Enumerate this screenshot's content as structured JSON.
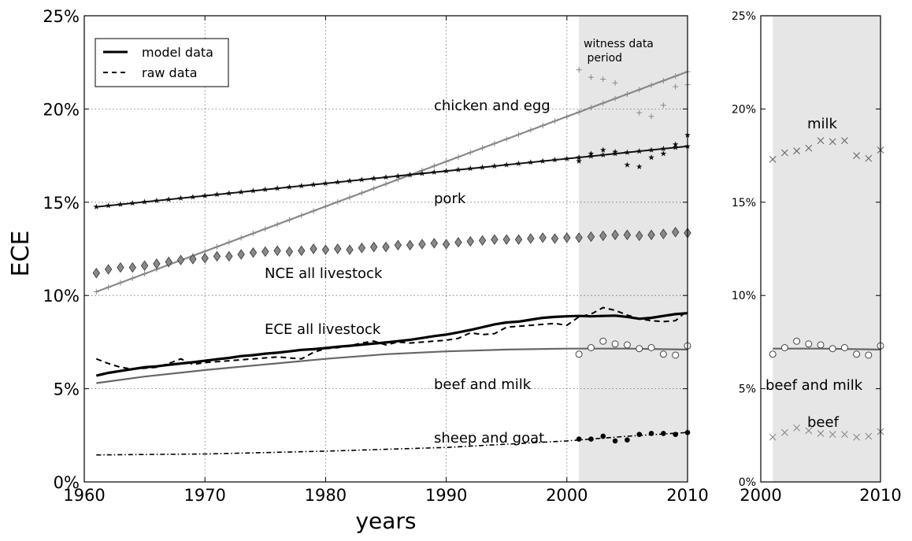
{
  "chart_data": [
    {
      "type": "line",
      "ylabel": "ECE",
      "xlabel": "years",
      "xlim": [
        1960,
        2010
      ],
      "ylim": [
        0,
        25
      ],
      "x_ticks": [
        "1960",
        "1970",
        "1980",
        "1990",
        "2000",
        "2010"
      ],
      "y_ticks": [
        "0%",
        "5%",
        "10%",
        "15%",
        "20%",
        "25%"
      ],
      "grid": true,
      "shaded_period": {
        "label": "witness data\n period",
        "x_range": [
          2001,
          2010
        ]
      },
      "legend": {
        "position": "top-left",
        "entries": [
          {
            "label": "model data",
            "style": "solid"
          },
          {
            "label": "raw data",
            "style": "dashed"
          }
        ]
      },
      "series": [
        {
          "name": "chicken and egg",
          "label": "chicken and egg",
          "color": "#888888",
          "model": {
            "x": [
              1961,
              2010
            ],
            "y": [
              10.2,
              22.0
            ]
          },
          "witness": {
            "x": [
              2001,
              2002,
              2003,
              2004,
              2006,
              2007,
              2008,
              2009,
              2010
            ],
            "y": [
              22.1,
              21.7,
              21.6,
              21.4,
              19.8,
              19.6,
              20.2,
              21.2,
              21.3
            ]
          }
        },
        {
          "name": "pork",
          "label": "pork",
          "color": "#111111",
          "model": {
            "x": [
              1961,
              2010
            ],
            "y": [
              14.75,
              18.0
            ]
          },
          "witness": {
            "x": [
              2001,
              2002,
              2003,
              2004,
              2005,
              2006,
              2007,
              2008,
              2009,
              2010
            ],
            "y": [
              17.2,
              17.6,
              17.8,
              17.7,
              17.0,
              16.9,
              17.4,
              17.6,
              18.1,
              18.6
            ]
          }
        },
        {
          "name": "NCE all livestock",
          "label": "NCE all livestock",
          "color": "#808080",
          "x": [
            1961,
            1962,
            1963,
            1964,
            1965,
            1966,
            1967,
            1968,
            1969,
            1970,
            1971,
            1972,
            1973,
            1974,
            1975,
            1976,
            1977,
            1978,
            1979,
            1980,
            1981,
            1982,
            1983,
            1984,
            1985,
            1986,
            1987,
            1988,
            1989,
            1990,
            1991,
            1992,
            1993,
            1994,
            1995,
            1996,
            1997,
            1998,
            1999,
            2000,
            2001,
            2002,
            2003,
            2004,
            2005,
            2006,
            2007,
            2008,
            2009,
            2010
          ],
          "y": [
            11.2,
            11.4,
            11.5,
            11.5,
            11.6,
            11.7,
            11.8,
            11.9,
            11.95,
            12.0,
            12.1,
            12.1,
            12.2,
            12.3,
            12.35,
            12.4,
            12.35,
            12.4,
            12.5,
            12.45,
            12.5,
            12.45,
            12.55,
            12.6,
            12.6,
            12.7,
            12.7,
            12.75,
            12.8,
            12.75,
            12.85,
            12.9,
            12.95,
            13.0,
            13.0,
            13.0,
            13.05,
            13.1,
            13.05,
            13.1,
            13.1,
            13.15,
            13.2,
            13.25,
            13.25,
            13.2,
            13.25,
            13.3,
            13.4,
            13.35
          ]
        },
        {
          "name": "ECE all livestock",
          "label": "ECE all livestock",
          "color": "#000000",
          "model": {
            "x": [
              1961,
              1962,
              1963,
              1964,
              1965,
              1966,
              1967,
              1968,
              1969,
              1970,
              1971,
              1972,
              1973,
              1974,
              1975,
              1976,
              1977,
              1978,
              1979,
              1980,
              1981,
              1982,
              1983,
              1984,
              1985,
              1986,
              1987,
              1988,
              1989,
              1990,
              1991,
              1992,
              1993,
              1994,
              1995,
              1996,
              1997,
              1998,
              1999,
              2000,
              2001,
              2002,
              2003,
              2004,
              2005,
              2006,
              2007,
              2008,
              2009,
              2010
            ],
            "y": [
              5.7,
              5.85,
              5.95,
              6.05,
              6.15,
              6.2,
              6.28,
              6.35,
              6.42,
              6.5,
              6.58,
              6.65,
              6.75,
              6.8,
              6.88,
              6.93,
              7.0,
              7.08,
              7.12,
              7.18,
              7.25,
              7.3,
              7.36,
              7.42,
              7.48,
              7.55,
              7.62,
              7.72,
              7.82,
              7.9,
              8.02,
              8.15,
              8.3,
              8.45,
              8.55,
              8.6,
              8.7,
              8.8,
              8.85,
              8.88,
              8.9,
              8.88,
              8.9,
              8.92,
              8.85,
              8.75,
              8.8,
              8.9,
              9.0,
              9.05
            ]
          },
          "raw": {
            "x": [
              1961,
              1962,
              1963,
              1964,
              1965,
              1966,
              1967,
              1968,
              1969,
              1970,
              1971,
              1972,
              1973,
              1974,
              1975,
              1976,
              1977,
              1978,
              1979,
              1980,
              1981,
              1982,
              1983,
              1984,
              1985,
              1986,
              1987,
              1988,
              1989,
              1990,
              1991,
              1992,
              1993,
              1994,
              1995,
              1996,
              1997,
              1998,
              1999,
              2000,
              2001,
              2002,
              2003,
              2004,
              2005,
              2006,
              2007,
              2008,
              2009,
              2010
            ],
            "y": [
              6.6,
              6.35,
              6.15,
              6.05,
              6.1,
              6.15,
              6.35,
              6.6,
              6.3,
              6.4,
              6.45,
              6.5,
              6.55,
              6.6,
              6.65,
              6.7,
              6.65,
              6.6,
              6.95,
              7.15,
              7.2,
              7.3,
              7.45,
              7.55,
              7.35,
              7.5,
              7.45,
              7.5,
              7.55,
              7.6,
              7.7,
              8.0,
              7.9,
              7.95,
              8.3,
              8.35,
              8.4,
              8.45,
              8.5,
              8.4,
              8.85,
              9.0,
              9.35,
              9.2,
              8.95,
              8.75,
              8.65,
              8.6,
              8.65,
              9.2
            ]
          }
        },
        {
          "name": "beef and milk",
          "label": "beef and milk",
          "color": "#666666",
          "model": {
            "x": [
              1961,
              1965,
              1970,
              1975,
              1980,
              1985,
              1990,
              1995,
              2000,
              2005,
              2010
            ],
            "y": [
              5.3,
              5.65,
              6.0,
              6.3,
              6.6,
              6.85,
              7.0,
              7.1,
              7.15,
              7.15,
              7.1
            ]
          },
          "witness": {
            "x": [
              2001,
              2002,
              2003,
              2004,
              2005,
              2006,
              2007,
              2008,
              2009,
              2010
            ],
            "y": [
              6.85,
              7.2,
              7.55,
              7.4,
              7.35,
              7.15,
              7.2,
              6.85,
              6.8,
              7.3
            ]
          }
        },
        {
          "name": "sheep and goat",
          "label": "sheep and goat",
          "color": "#000000",
          "model": {
            "x": [
              1961,
              1970,
              1980,
              1990,
              2000,
              2005,
              2010
            ],
            "y": [
              1.45,
              1.5,
              1.65,
              1.85,
              2.2,
              2.45,
              2.65
            ]
          },
          "witness": {
            "x": [
              2001,
              2002,
              2003,
              2004,
              2005,
              2006,
              2007,
              2008,
              2009,
              2010
            ],
            "y": [
              2.3,
              2.3,
              2.45,
              2.2,
              2.25,
              2.55,
              2.6,
              2.6,
              2.55,
              2.65
            ]
          }
        }
      ]
    },
    {
      "type": "line",
      "xlim": [
        2000,
        2010
      ],
      "ylim": [
        0,
        25
      ],
      "x_ticks": [
        "2000",
        "2010"
      ],
      "y_ticks": [
        "0%",
        "5%",
        "10%",
        "15%",
        "20%",
        "25%"
      ],
      "grid": false,
      "shaded_period": {
        "x_range": [
          2001,
          2010
        ]
      },
      "series": [
        {
          "name": "milk",
          "label": "milk",
          "color": "#666666",
          "witness": {
            "x": [
              2001,
              2002,
              2003,
              2004,
              2005,
              2006,
              2007,
              2008,
              2009,
              2010
            ],
            "y": [
              17.3,
              17.65,
              17.75,
              17.9,
              18.3,
              18.25,
              18.3,
              17.5,
              17.35,
              17.8
            ]
          }
        },
        {
          "name": "beef and milk",
          "label": "beef and milk",
          "color": "#666666",
          "model": {
            "x": [
              2001,
              2005,
              2010
            ],
            "y": [
              7.15,
              7.15,
              7.1
            ]
          },
          "witness": {
            "x": [
              2001,
              2002,
              2003,
              2004,
              2005,
              2006,
              2007,
              2008,
              2009,
              2010
            ],
            "y": [
              6.85,
              7.2,
              7.55,
              7.4,
              7.35,
              7.15,
              7.2,
              6.85,
              6.8,
              7.3
            ]
          }
        },
        {
          "name": "beef",
          "label": "beef",
          "color": "#888888",
          "witness": {
            "x": [
              2001,
              2002,
              2003,
              2004,
              2005,
              2006,
              2007,
              2008,
              2009,
              2010
            ],
            "y": [
              2.4,
              2.65,
              2.9,
              2.75,
              2.6,
              2.55,
              2.55,
              2.4,
              2.45,
              2.7
            ]
          }
        }
      ]
    }
  ]
}
